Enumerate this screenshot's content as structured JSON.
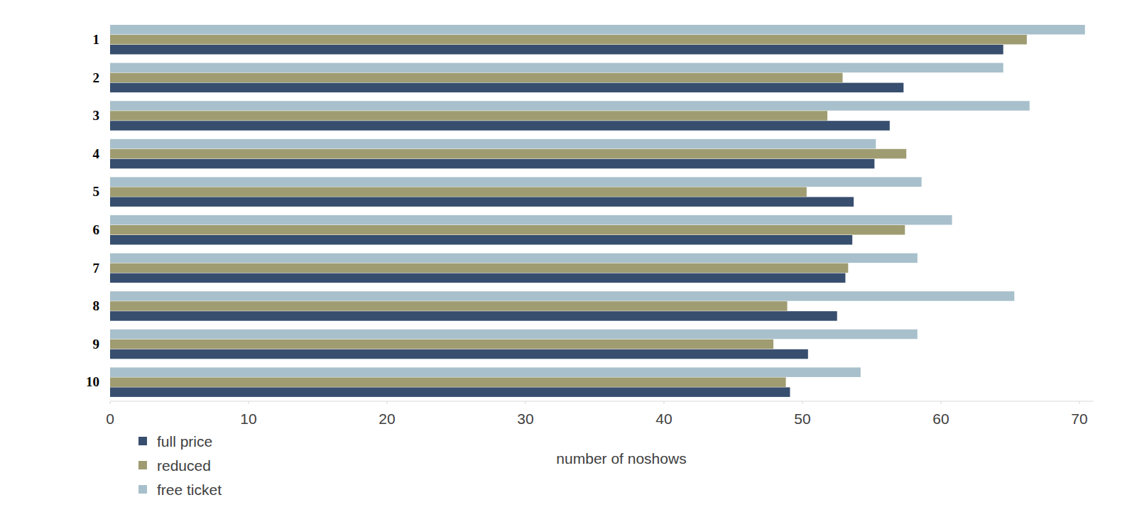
{
  "chart_data": {
    "type": "bar",
    "orientation": "horizontal",
    "x_label": "number of noshows",
    "categories": [
      "1",
      "2",
      "3",
      "4",
      "5",
      "6",
      "7",
      "8",
      "9",
      "10"
    ],
    "series": [
      {
        "name": "full price",
        "color": "#374e6e",
        "values": [
          64.5,
          57.3,
          56.3,
          55.2,
          53.7,
          53.6,
          53.1,
          52.5,
          50.4,
          49.1
        ]
      },
      {
        "name": "reduced",
        "color": "#a09c72",
        "values": [
          66.2,
          52.9,
          51.8,
          57.5,
          50.3,
          57.4,
          53.3,
          48.9,
          47.9,
          48.8
        ]
      },
      {
        "name": "free ticket",
        "color": "#a8c0cb",
        "values": [
          70.4,
          64.5,
          66.4,
          55.3,
          58.6,
          60.8,
          58.3,
          65.3,
          58.3,
          54.2
        ]
      }
    ],
    "xlim": [
      0,
      71
    ],
    "xticks": [
      0,
      10,
      20,
      30,
      40,
      50,
      60,
      70
    ],
    "grid": false,
    "legend": "bottom-left"
  }
}
